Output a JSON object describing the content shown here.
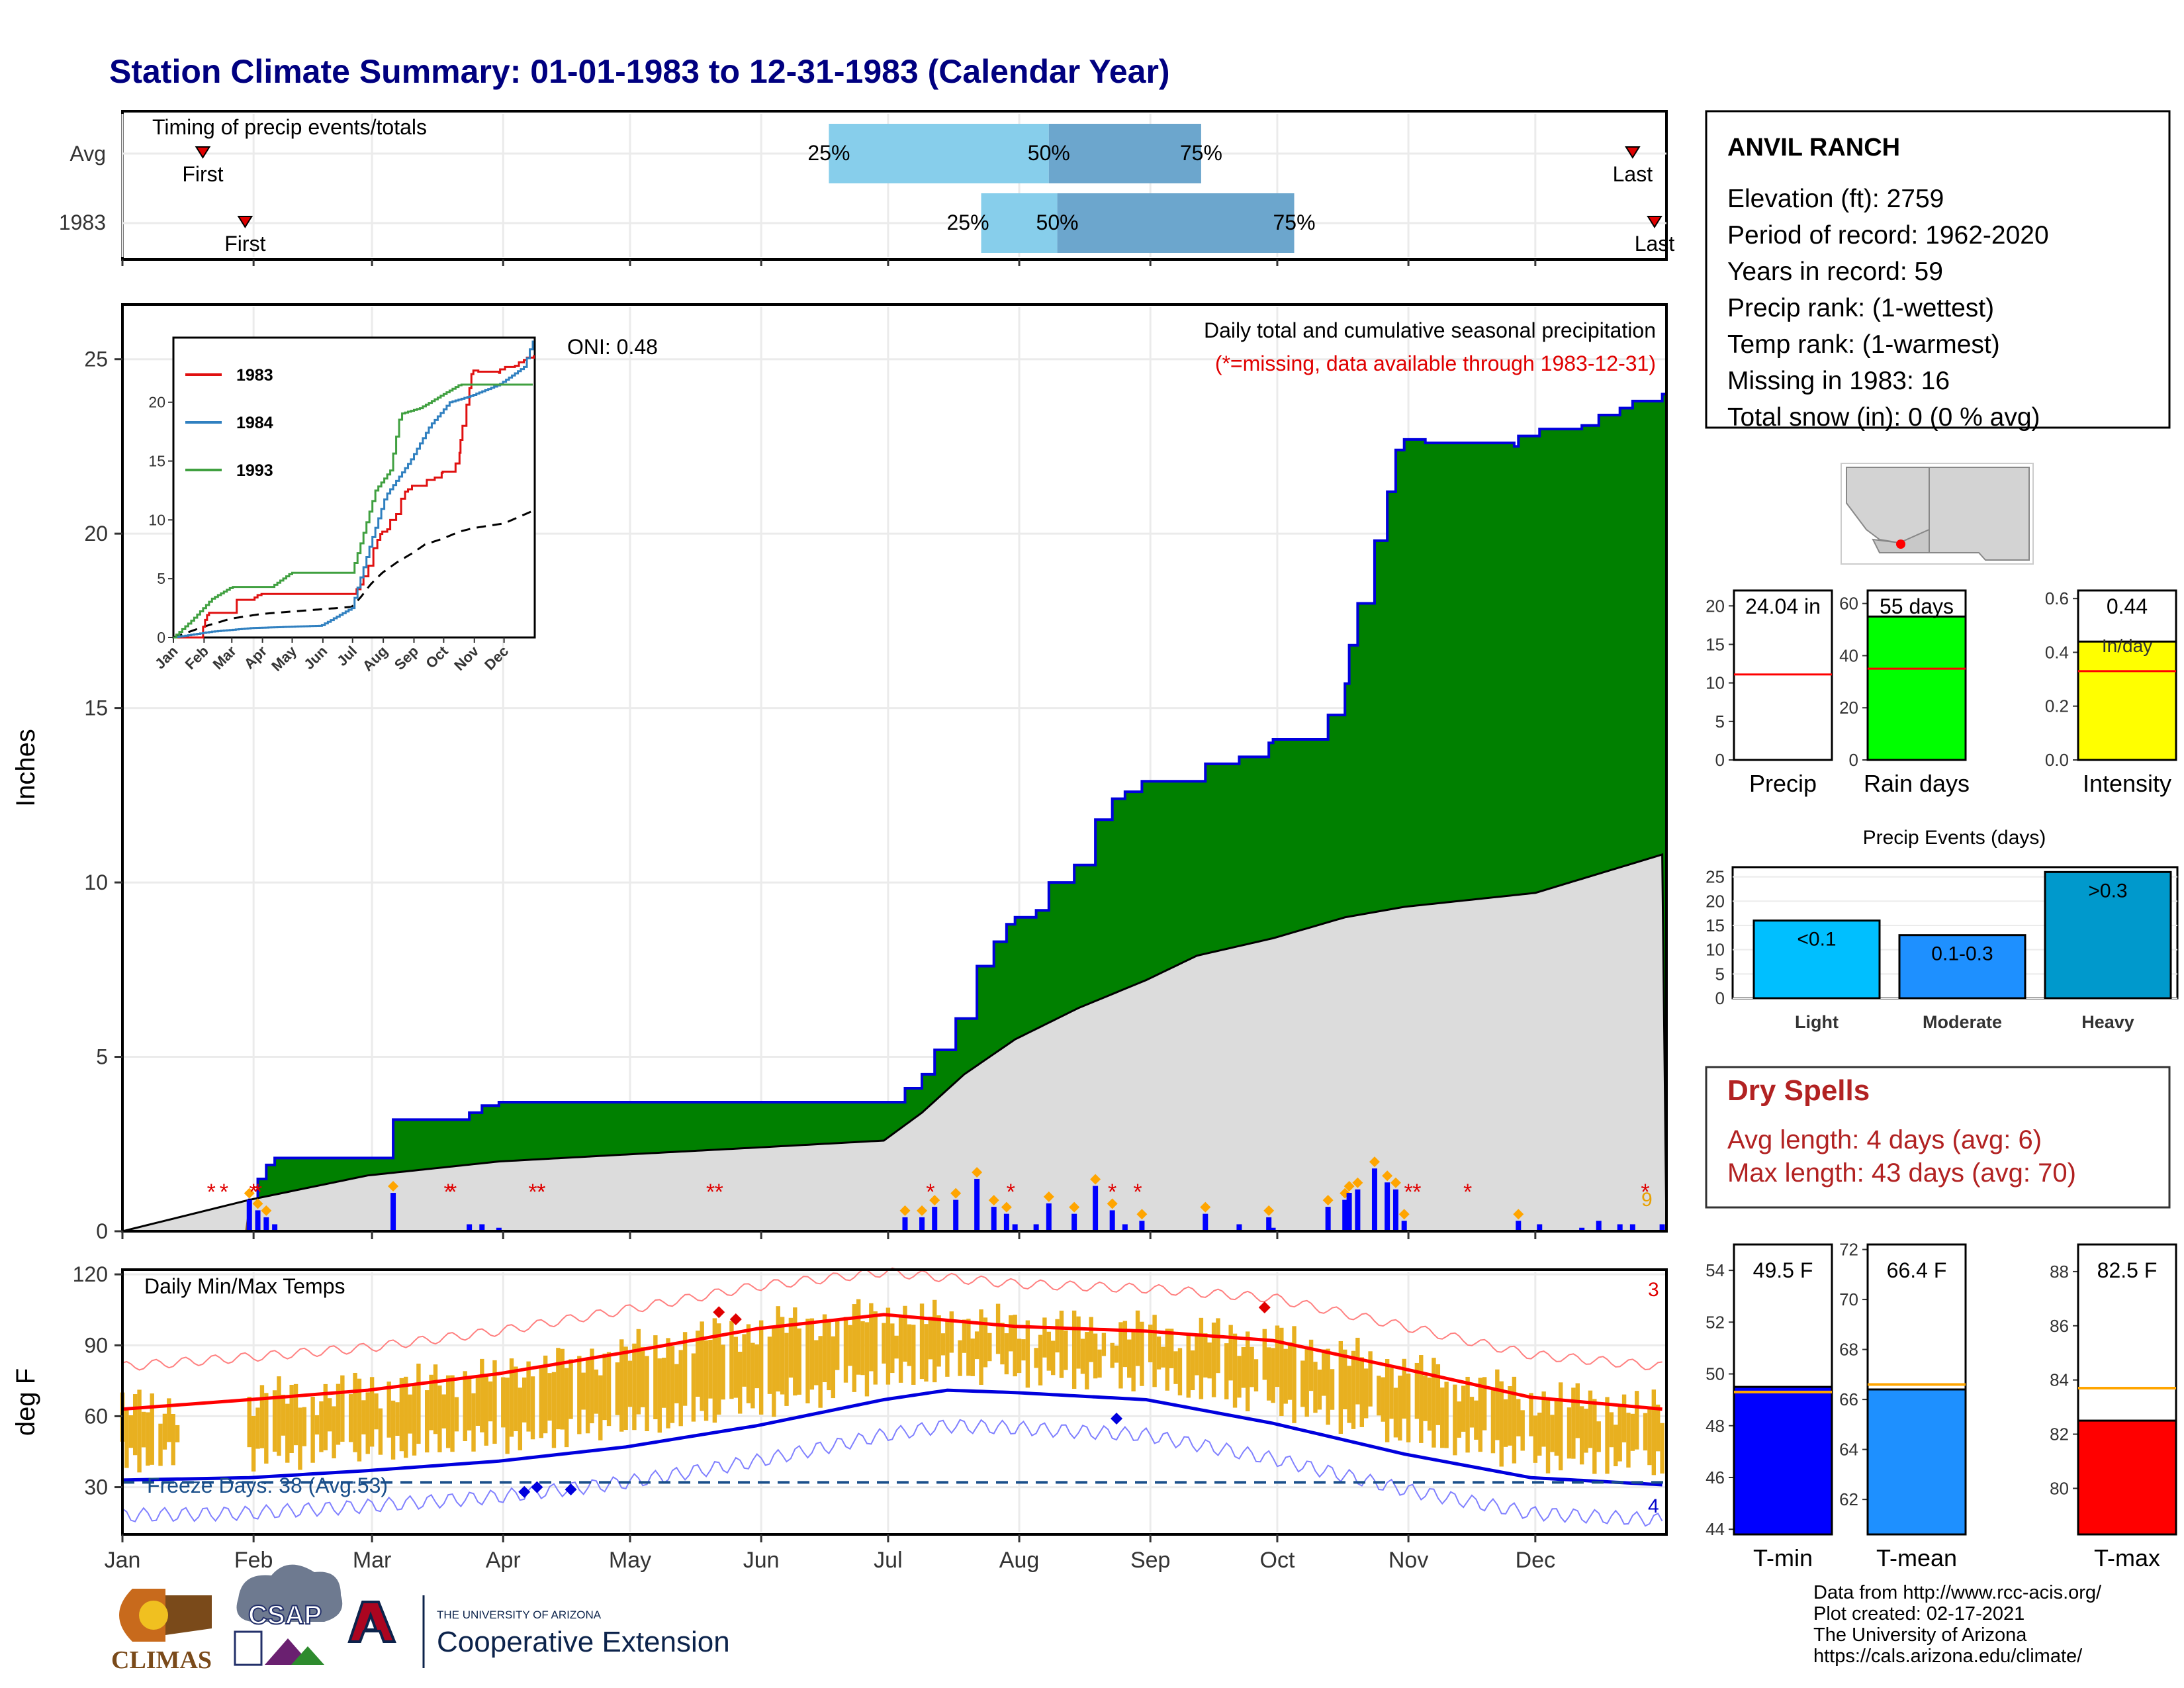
{
  "title": "Station Climate Summary: 01-01-1983 to 12-31-1983 (Calendar Year)",
  "timing": {
    "label": "Timing of precip events/totals",
    "rows": [
      {
        "name": "Avg",
        "first_label": "First",
        "last_label": "Last",
        "first_day": 20,
        "last_day": 358,
        "p25": 168,
        "p50": 220,
        "p75": 256
      },
      {
        "name": "1983",
        "first_label": "First",
        "last_label": "Last",
        "first_day": 30,
        "last_day": 368,
        "p25": 204,
        "p50": 222,
        "p75": 278
      }
    ],
    "pct_labels": [
      "25%",
      "50%",
      "75%"
    ]
  },
  "station": {
    "name": "ANVIL RANCH",
    "lines": [
      "Elevation (ft): 2759",
      "Period of record: 1962-2020",
      "Years in record: 59",
      "Precip rank:  (1-wettest)",
      "Temp rank:  (1-warmest)",
      "Missing in 1983: 16",
      "Total snow (in): 0 (0 % avg)"
    ]
  },
  "precip_panel": {
    "ylabel": "Inches",
    "title": "Daily total and cumulative seasonal precipitation",
    "missing_note": "(*=missing, data available through 1983-12-31)",
    "oni": "ONI: 0.48",
    "yticks": [
      0,
      5,
      10,
      15,
      20,
      25
    ],
    "corner_number": "9"
  },
  "inset": {
    "legend": [
      {
        "name": "1983",
        "color": "#e01010"
      },
      {
        "name": "1984",
        "color": "#3080c0"
      },
      {
        "name": "1993",
        "color": "#40a040"
      }
    ],
    "xticks": [
      "Jan",
      "Feb",
      "Mar",
      "Apr",
      "May",
      "Jun",
      "Jul",
      "Aug",
      "Sep",
      "Oct",
      "Nov",
      "Dec"
    ],
    "yticks": [
      0,
      5,
      10,
      15,
      20
    ]
  },
  "bar_panels": [
    {
      "label": "Precip",
      "value_label": "24.04 in",
      "yticks": [
        0,
        5,
        10,
        15,
        20
      ],
      "ymax": 22,
      "value": 24.04,
      "avg": 11.1,
      "color": "#ffffff"
    },
    {
      "label": "Rain days",
      "value_label": "55 days",
      "yticks": [
        0,
        20,
        40,
        60
      ],
      "ymax": 65,
      "value": 55,
      "avg": 35,
      "color": "#00ff00"
    },
    {
      "label": "Intensity",
      "value_label": "0.44",
      "value_label2": "In/day",
      "yticks": [
        0.0,
        0.2,
        0.4,
        0.6
      ],
      "ymax": 0.63,
      "value": 0.44,
      "avg": 0.33,
      "color": "#ffff00"
    }
  ],
  "events": {
    "title": "Precip Events (days)",
    "categories": [
      "Light",
      "Moderate",
      "Heavy"
    ],
    "labels": [
      "<0.1",
      "0.1-0.3",
      ">0.3"
    ],
    "values": [
      16,
      13,
      26
    ],
    "yticks": [
      0,
      5,
      10,
      15,
      20,
      25
    ],
    "colors": [
      "#00bfff",
      "#1e90ff",
      "#0099cc"
    ]
  },
  "dry_spells": {
    "title": "Dry Spells",
    "lines": [
      "Avg length: 4 days (avg: 6)",
      "Max length: 43 days (avg: 70)"
    ]
  },
  "temp_panel": {
    "ylabel": "deg F",
    "title": "Daily Min/Max Temps",
    "freeze": "Freeze Days: 38 (Avg:53)",
    "corner_top": "3",
    "corner_bottom": "4",
    "yticks": [
      30,
      60,
      90,
      120
    ],
    "months": [
      "Jan",
      "Feb",
      "Mar",
      "Apr",
      "May",
      "Jun",
      "Jul",
      "Aug",
      "Sep",
      "Oct",
      "Nov",
      "Dec"
    ]
  },
  "temp_bars": [
    {
      "label": "T-min",
      "value_label": "49.5 F",
      "yticks": [
        44,
        46,
        48,
        50,
        52,
        54
      ],
      "ymin": 43.8,
      "ymax": 55,
      "value": 49.5,
      "avg": 49.3,
      "color": "#0000ff"
    },
    {
      "label": "T-mean",
      "value_label": "66.4 F",
      "yticks": [
        62,
        64,
        66,
        68,
        70,
        72
      ],
      "ymin": 60.6,
      "ymax": 72.2,
      "value": 66.4,
      "avg": 66.6,
      "color": "#1e90ff"
    },
    {
      "label": "T-max",
      "value_label": "82.5 F",
      "yticks": [
        80,
        82,
        84,
        86,
        88
      ],
      "ymin": 78.3,
      "ymax": 89,
      "value": 82.5,
      "avg": 83.7,
      "color": "#ff0000"
    }
  ],
  "logos": {
    "climas": "CLIMAS",
    "csap": "CSAP",
    "ua_small": "THE UNIVERSITY OF ARIZONA",
    "ua_big": "Cooperative Extension"
  },
  "footer": [
    "Data from http://www.rcc-acis.org/",
    "Plot created: 02-17-2021",
    "The University of Arizona",
    "https://cals.arizona.edu/climate/"
  ],
  "chart_data": {
    "type": "area",
    "title": "Daily total and cumulative seasonal precipitation",
    "ylabel": "Inches",
    "ylim": [
      0,
      26
    ],
    "cumulative_1983": [
      [
        1,
        0
      ],
      [
        31,
        0.9
      ],
      [
        33,
        1.5
      ],
      [
        35,
        1.9
      ],
      [
        37,
        2.1
      ],
      [
        65,
        2.1
      ],
      [
        65,
        3.2
      ],
      [
        82,
        3.2
      ],
      [
        83,
        3.4
      ],
      [
        86,
        3.6
      ],
      [
        90,
        3.7
      ],
      [
        180,
        3.7
      ],
      [
        186,
        4.1
      ],
      [
        190,
        4.5
      ],
      [
        193,
        5.2
      ],
      [
        198,
        6.1
      ],
      [
        203,
        7.6
      ],
      [
        207,
        8.3
      ],
      [
        210,
        8.8
      ],
      [
        212,
        9.0
      ],
      [
        217,
        9.2
      ],
      [
        220,
        10.0
      ],
      [
        226,
        10.5
      ],
      [
        231,
        11.8
      ],
      [
        235,
        12.4
      ],
      [
        238,
        12.6
      ],
      [
        242,
        12.9
      ],
      [
        255,
        12.9
      ],
      [
        257,
        13.4
      ],
      [
        265,
        13.6
      ],
      [
        268,
        13.6
      ],
      [
        272,
        14.0
      ],
      [
        273,
        14.1
      ],
      [
        283,
        14.1
      ],
      [
        286,
        14.8
      ],
      [
        290,
        15.7
      ],
      [
        291,
        16.8
      ],
      [
        293,
        18.0
      ],
      [
        297,
        19.8
      ],
      [
        300,
        21.2
      ],
      [
        302,
        22.4
      ],
      [
        304,
        22.7
      ],
      [
        309,
        22.6
      ],
      [
        316,
        22.6
      ],
      [
        330,
        22.5
      ],
      [
        331,
        22.8
      ],
      [
        336,
        23.0
      ],
      [
        346,
        23.1
      ],
      [
        350,
        23.4
      ],
      [
        355,
        23.6
      ],
      [
        358,
        23.8
      ],
      [
        362,
        23.8
      ],
      [
        365,
        24.0
      ]
    ],
    "avg_cumulative": [
      [
        1,
        0
      ],
      [
        31,
        0.9
      ],
      [
        59,
        1.6
      ],
      [
        90,
        2.0
      ],
      [
        120,
        2.2
      ],
      [
        151,
        2.4
      ],
      [
        181,
        2.6
      ],
      [
        190,
        3.4
      ],
      [
        200,
        4.5
      ],
      [
        212,
        5.5
      ],
      [
        227,
        6.4
      ],
      [
        243,
        7.2
      ],
      [
        255,
        7.9
      ],
      [
        273,
        8.4
      ],
      [
        290,
        9.0
      ],
      [
        304,
        9.3
      ],
      [
        335,
        9.7
      ],
      [
        365,
        10.8
      ]
    ],
    "temps": {
      "title": "Daily Min/Max Temps",
      "ylim": [
        10,
        122
      ],
      "avg_max": [
        [
          1,
          63
        ],
        [
          31,
          67
        ],
        [
          59,
          71
        ],
        [
          90,
          78
        ],
        [
          120,
          87
        ],
        [
          151,
          97
        ],
        [
          181,
          103
        ],
        [
          212,
          98
        ],
        [
          243,
          96
        ],
        [
          273,
          92
        ],
        [
          304,
          80
        ],
        [
          334,
          68
        ],
        [
          365,
          63
        ]
      ],
      "avg_min": [
        [
          1,
          33
        ],
        [
          31,
          34
        ],
        [
          59,
          37
        ],
        [
          90,
          41
        ],
        [
          120,
          47
        ],
        [
          151,
          56
        ],
        [
          181,
          67
        ],
        [
          196,
          71
        ],
        [
          212,
          70
        ],
        [
          243,
          67
        ],
        [
          273,
          57
        ],
        [
          304,
          44
        ],
        [
          334,
          34
        ],
        [
          365,
          31
        ]
      ]
    }
  }
}
